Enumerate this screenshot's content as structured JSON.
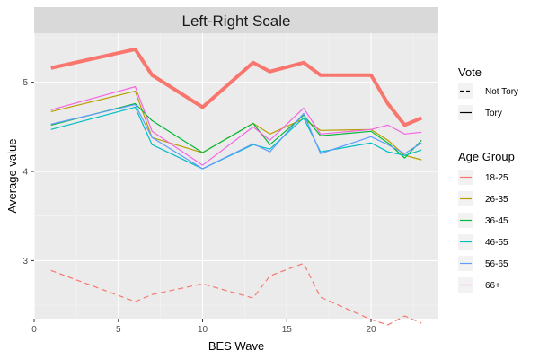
{
  "chart_data": {
    "type": "line",
    "title": "Left-Right Scale",
    "xlabel": "BES Wave",
    "ylabel": "Average value",
    "xlim": [
      0,
      24
    ],
    "ylim": [
      2.35,
      5.55
    ],
    "xticks": [
      0,
      5,
      10,
      15,
      20
    ],
    "yticks": [
      3,
      4,
      5
    ],
    "grid": true,
    "legends": [
      {
        "title": "Vote",
        "type": "linetype",
        "entries": [
          {
            "label": "Not Tory",
            "dash": "dashed"
          },
          {
            "label": "Tory",
            "dash": "solid"
          }
        ]
      },
      {
        "title": "Age Group",
        "type": "colour",
        "entries": [
          {
            "label": "18-25",
            "color": "#F8766D"
          },
          {
            "label": "26-35",
            "color": "#B79F00"
          },
          {
            "label": "36-45",
            "color": "#00BA38"
          },
          {
            "label": "46-55",
            "color": "#00BFC4"
          },
          {
            "label": "56-65",
            "color": "#619CFF"
          },
          {
            "label": "66+",
            "color": "#F564E3"
          }
        ]
      }
    ],
    "series": [
      {
        "age": "18-25",
        "vote": "Tory",
        "color": "#F8766D",
        "dash": "solid",
        "width": 4,
        "x": [
          1,
          6,
          7,
          10,
          13,
          14,
          16,
          17,
          20,
          21,
          22,
          23
        ],
        "y": [
          5.16,
          5.37,
          5.08,
          4.72,
          5.22,
          5.12,
          5.22,
          5.08,
          5.08,
          4.76,
          4.52,
          4.6
        ]
      },
      {
        "age": "18-25",
        "vote": "Not Tory",
        "color": "#F8766D",
        "dash": "dashed",
        "width": 1.2,
        "x": [
          1,
          6,
          7,
          10,
          13,
          14,
          16,
          17,
          20,
          21,
          22,
          23
        ],
        "y": [
          2.89,
          2.54,
          2.62,
          2.74,
          2.58,
          2.83,
          2.97,
          2.59,
          2.34,
          2.28,
          2.38,
          2.3
        ]
      },
      {
        "age": "26-35",
        "vote": "Tory",
        "color": "#B79F00",
        "dash": "solid",
        "width": 1.2,
        "x": [
          1,
          6,
          7,
          10,
          13,
          14,
          16,
          17,
          20,
          21,
          22,
          23
        ],
        "y": [
          4.67,
          4.9,
          4.38,
          4.21,
          4.54,
          4.42,
          4.59,
          4.46,
          4.47,
          4.35,
          4.18,
          4.13
        ]
      },
      {
        "age": "36-45",
        "vote": "Tory",
        "color": "#00BA38",
        "dash": "solid",
        "width": 1.2,
        "x": [
          1,
          6,
          7,
          10,
          13,
          14,
          16,
          17,
          20,
          21,
          22,
          23
        ],
        "y": [
          4.52,
          4.76,
          4.57,
          4.21,
          4.54,
          4.3,
          4.63,
          4.4,
          4.45,
          4.32,
          4.15,
          4.35
        ]
      },
      {
        "age": "46-55",
        "vote": "Tory",
        "color": "#00BFC4",
        "dash": "solid",
        "width": 1.2,
        "x": [
          1,
          6,
          7,
          10,
          13,
          14,
          16,
          17,
          20,
          21,
          22,
          23
        ],
        "y": [
          4.47,
          4.72,
          4.3,
          4.03,
          4.3,
          4.25,
          4.6,
          4.22,
          4.32,
          4.22,
          4.18,
          4.24
        ]
      },
      {
        "age": "56-65",
        "vote": "Tory",
        "color": "#619CFF",
        "dash": "solid",
        "width": 1.2,
        "x": [
          1,
          6,
          7,
          10,
          13,
          14,
          16,
          17,
          20,
          21,
          22,
          23
        ],
        "y": [
          4.53,
          4.75,
          4.38,
          4.03,
          4.31,
          4.22,
          4.65,
          4.2,
          4.39,
          4.3,
          4.2,
          4.32
        ]
      },
      {
        "age": "66+",
        "vote": "Tory",
        "color": "#F564E3",
        "dash": "solid",
        "width": 1.2,
        "x": [
          1,
          6,
          7,
          10,
          13,
          14,
          16,
          17,
          20,
          21,
          22,
          23
        ],
        "y": [
          4.69,
          4.95,
          4.45,
          4.07,
          4.5,
          4.35,
          4.71,
          4.42,
          4.47,
          4.52,
          4.42,
          4.44
        ]
      }
    ]
  }
}
